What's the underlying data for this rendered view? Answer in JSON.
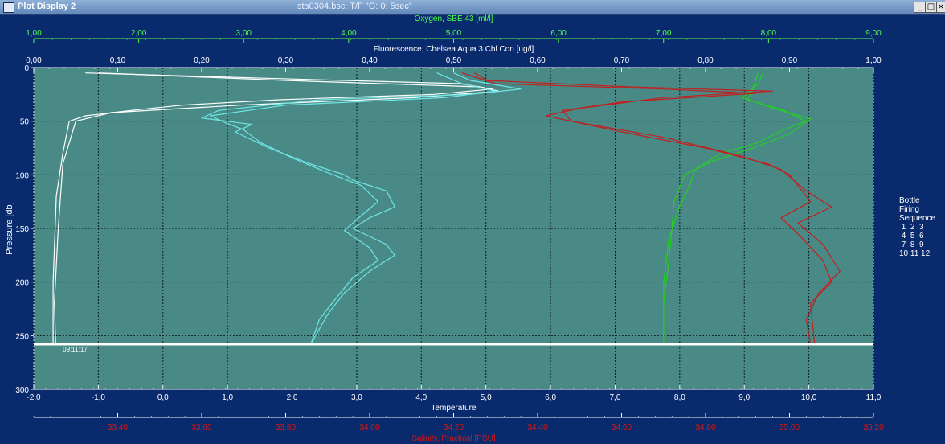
{
  "window": {
    "title": "Plot Display 2",
    "file_title": "sta0304.bsc: T/F \"G: 0: 5sec\"",
    "min_icon": "_",
    "max_icon": "□",
    "close_icon": "×"
  },
  "legend": {
    "lines": [
      "Bottle",
      "Firing",
      "Sequence",
      " 1  2  3",
      " 4  5  6",
      " 7  8  9",
      "10 11 12"
    ]
  },
  "chart_data": {
    "type": "line",
    "y_axis": {
      "label": "Pressure [db]",
      "range": [
        300,
        0
      ],
      "ticks": [
        0,
        50,
        100,
        150,
        200,
        250,
        300
      ],
      "tick_labels": [
        "0",
        "50",
        "100",
        "150",
        "200",
        "250",
        "300"
      ],
      "reversed": true
    },
    "x_axes": [
      {
        "id": "oxygen",
        "label": "Oxygen, SBE 43 [ml/l]",
        "position": "top-outer",
        "color": "#4dff4d",
        "range": [
          1,
          9
        ],
        "ticks": [
          1,
          2,
          3,
          4,
          5,
          6,
          7,
          8,
          9
        ],
        "tick_labels": [
          "1,00",
          "2,00",
          "3,00",
          "4,00",
          "5,00",
          "6,00",
          "7,00",
          "8,00",
          "9,00"
        ]
      },
      {
        "id": "fluorescence",
        "label": "Fluorescence, Chelsea Aqua 3 Chl Con [ug/l]",
        "position": "top-inner",
        "color": "#ffffff",
        "range": [
          0,
          1
        ],
        "ticks": [
          0,
          0.1,
          0.2,
          0.3,
          0.4,
          0.5,
          0.6,
          0.7,
          0.8,
          0.9,
          1.0
        ],
        "tick_labels": [
          "0,00",
          "0,10",
          "0,20",
          "0,30",
          "0,40",
          "0,50",
          "0,60",
          "0,70",
          "0,80",
          "0,90",
          "1,00"
        ]
      },
      {
        "id": "temperature",
        "label": "Temperature",
        "position": "bottom-inner",
        "color": "#ffffff",
        "range": [
          -2,
          11
        ],
        "ticks": [
          -2,
          -1,
          0,
          1,
          2,
          3,
          4,
          5,
          6,
          7,
          8,
          9,
          10,
          11
        ],
        "tick_labels": [
          "-2,0",
          "-1,0",
          "0,0",
          "1,0",
          "2,0",
          "3,0",
          "4,0",
          "5,0",
          "6,0",
          "7,0",
          "8,0",
          "9,0",
          "10,0",
          "11,0"
        ]
      },
      {
        "id": "salinity",
        "label": "Salinity, Practical [PSU]",
        "position": "bottom-outer",
        "color": "#d01818",
        "range": [
          33.2,
          35.2
        ],
        "ticks": [
          33.4,
          33.6,
          33.8,
          34.0,
          34.2,
          34.4,
          34.6,
          34.8,
          35.0,
          35.2
        ],
        "tick_labels": [
          "33,40",
          "33,60",
          "33,80",
          "34,00",
          "34,20",
          "34,40",
          "34,60",
          "34,80",
          "35,00",
          "35,20"
        ]
      }
    ],
    "grid": true,
    "bottle_line_pressure": 258,
    "bottle_marker_label": "09:11:17",
    "series": [
      {
        "axis": "temperature",
        "color": "#ffffff",
        "points": [
          [
            -1.2,
            5
          ],
          [
            1.6,
            10
          ],
          [
            4.6,
            15
          ],
          [
            5.1,
            20
          ],
          [
            4.2,
            25
          ],
          [
            1.8,
            30
          ],
          [
            0.3,
            35
          ],
          [
            -0.5,
            40
          ],
          [
            -1.2,
            45
          ],
          [
            -1.45,
            50
          ],
          [
            -1.55,
            80
          ],
          [
            -1.65,
            120
          ],
          [
            -1.7,
            200
          ],
          [
            -1.7,
            258
          ]
        ]
      },
      {
        "axis": "temperature",
        "color": "#ffffff",
        "points": [
          [
            -1.0,
            5
          ],
          [
            1.9,
            12
          ],
          [
            4.9,
            18
          ],
          [
            5.2,
            22
          ],
          [
            3.9,
            28
          ],
          [
            1.2,
            35
          ],
          [
            -0.8,
            42
          ],
          [
            -1.35,
            50
          ],
          [
            -1.55,
            90
          ],
          [
            -1.62,
            150
          ],
          [
            -1.68,
            220
          ],
          [
            -1.66,
            258
          ]
        ]
      },
      {
        "axis": "fluorescence",
        "color": "#6ee6e6",
        "points": [
          [
            0.5,
            5
          ],
          [
            0.52,
            12
          ],
          [
            0.58,
            20
          ],
          [
            0.52,
            25
          ],
          [
            0.34,
            30
          ],
          [
            0.22,
            40
          ],
          [
            0.2,
            47
          ],
          [
            0.26,
            53
          ],
          [
            0.24,
            60
          ],
          [
            0.28,
            75
          ],
          [
            0.33,
            90
          ],
          [
            0.37,
            100
          ],
          [
            0.38,
            105
          ],
          [
            0.42,
            115
          ],
          [
            0.43,
            130
          ],
          [
            0.4,
            140
          ],
          [
            0.38,
            150
          ],
          [
            0.42,
            165
          ],
          [
            0.43,
            175
          ],
          [
            0.4,
            190
          ],
          [
            0.37,
            210
          ],
          [
            0.35,
            230
          ],
          [
            0.33,
            258
          ]
        ]
      },
      {
        "axis": "fluorescence",
        "color": "#6ee6e6",
        "points": [
          [
            0.48,
            5
          ],
          [
            0.51,
            15
          ],
          [
            0.55,
            22
          ],
          [
            0.49,
            28
          ],
          [
            0.3,
            35
          ],
          [
            0.21,
            45
          ],
          [
            0.23,
            52
          ],
          [
            0.25,
            58
          ],
          [
            0.27,
            70
          ],
          [
            0.31,
            85
          ],
          [
            0.35,
            98
          ],
          [
            0.39,
            110
          ],
          [
            0.41,
            125
          ],
          [
            0.39,
            138
          ],
          [
            0.37,
            152
          ],
          [
            0.4,
            168
          ],
          [
            0.41,
            180
          ],
          [
            0.38,
            196
          ],
          [
            0.36,
            215
          ],
          [
            0.34,
            235
          ],
          [
            0.33,
            258
          ]
        ]
      },
      {
        "axis": "oxygen",
        "color": "#22d022",
        "points": [
          [
            7.9,
            5
          ],
          [
            7.85,
            20
          ],
          [
            7.8,
            30
          ],
          [
            8.15,
            40
          ],
          [
            8.35,
            50
          ],
          [
            8.1,
            60
          ],
          [
            7.9,
            70
          ],
          [
            7.55,
            80
          ],
          [
            7.3,
            95
          ],
          [
            7.25,
            110
          ],
          [
            7.15,
            130
          ],
          [
            7.05,
            160
          ],
          [
            7.0,
            200
          ],
          [
            7.0,
            258
          ]
        ]
      },
      {
        "axis": "oxygen",
        "color": "#22d022",
        "points": [
          [
            7.95,
            5
          ],
          [
            7.9,
            15
          ],
          [
            7.75,
            28
          ],
          [
            8.05,
            38
          ],
          [
            8.4,
            48
          ],
          [
            8.2,
            62
          ],
          [
            7.85,
            75
          ],
          [
            7.45,
            88
          ],
          [
            7.2,
            100
          ],
          [
            7.1,
            125
          ],
          [
            7.08,
            150
          ],
          [
            7.05,
            180
          ],
          [
            7.0,
            220
          ],
          [
            7.0,
            258
          ]
        ]
      },
      {
        "axis": "salinity",
        "color": "#c02020",
        "points": [
          [
            34.25,
            5
          ],
          [
            34.28,
            12
          ],
          [
            34.62,
            18
          ],
          [
            34.96,
            22
          ],
          [
            34.7,
            28
          ],
          [
            34.5,
            38
          ],
          [
            34.42,
            45
          ],
          [
            34.6,
            60
          ],
          [
            34.8,
            75
          ],
          [
            34.95,
            90
          ],
          [
            35.0,
            100
          ],
          [
            35.02,
            110
          ],
          [
            35.05,
            125
          ],
          [
            34.98,
            140
          ],
          [
            35.02,
            155
          ],
          [
            35.08,
            180
          ],
          [
            35.1,
            200
          ],
          [
            35.05,
            220
          ],
          [
            35.06,
            258
          ]
        ]
      },
      {
        "axis": "salinity",
        "color": "#c02020",
        "points": [
          [
            34.22,
            5
          ],
          [
            34.3,
            15
          ],
          [
            34.7,
            20
          ],
          [
            34.92,
            24
          ],
          [
            34.6,
            32
          ],
          [
            34.46,
            40
          ],
          [
            34.48,
            50
          ],
          [
            34.7,
            65
          ],
          [
            34.88,
            82
          ],
          [
            34.98,
            95
          ],
          [
            35.04,
            115
          ],
          [
            35.1,
            130
          ],
          [
            35.02,
            145
          ],
          [
            35.08,
            165
          ],
          [
            35.12,
            190
          ],
          [
            35.07,
            210
          ],
          [
            35.04,
            235
          ],
          [
            35.05,
            258
          ]
        ]
      }
    ]
  }
}
